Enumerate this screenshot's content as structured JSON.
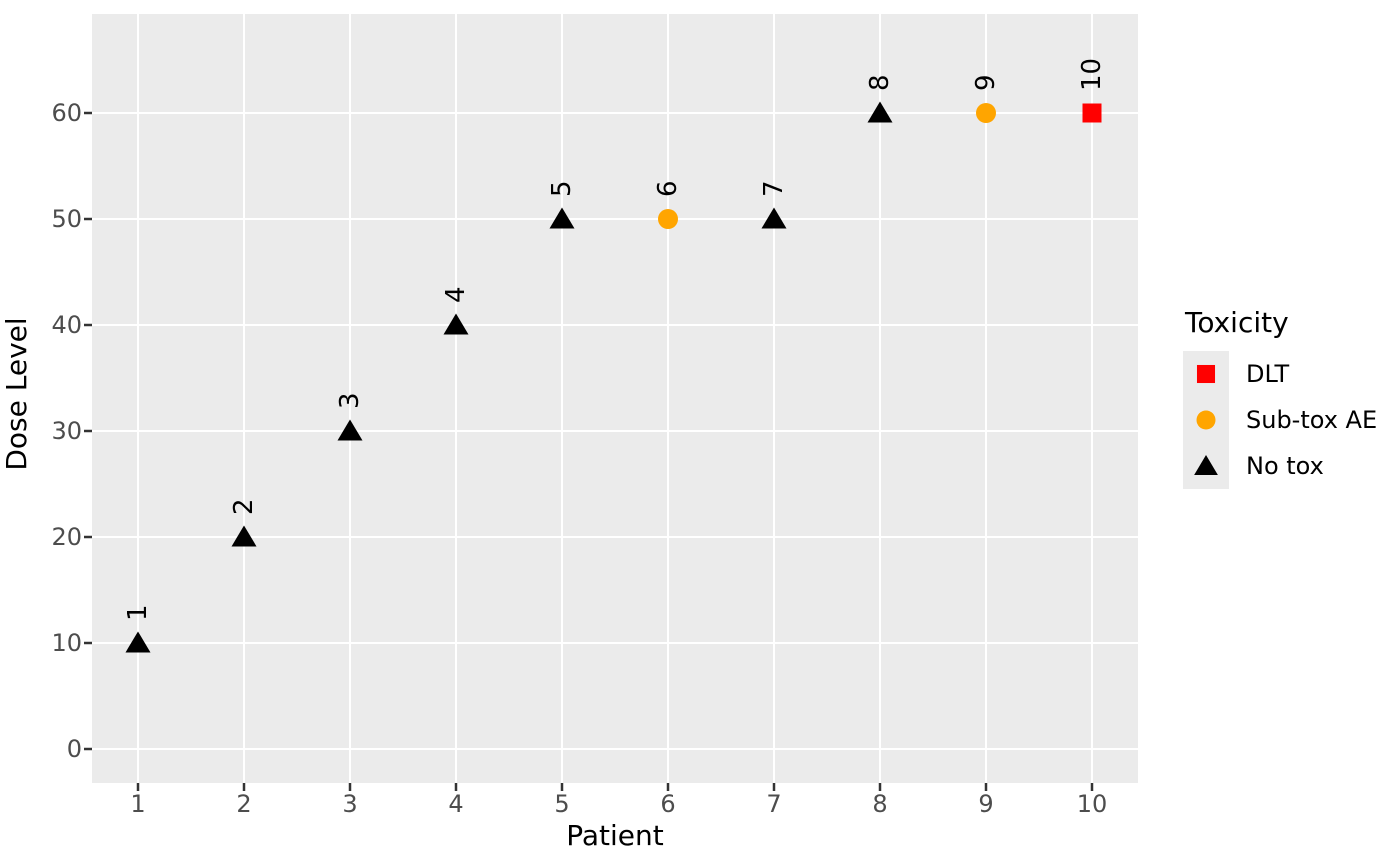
{
  "style": {
    "background": "#FFFFFF",
    "panel_background": "#EBEBEB",
    "grid_color": "#FFFFFF",
    "tick_mark_color": "#333333",
    "tick_label_color": "#4D4D4D",
    "text_color": "#000000"
  },
  "legend": {
    "title": "Toxicity",
    "entries": [
      {
        "label": "DLT",
        "shape": "square",
        "color": "#FF0000"
      },
      {
        "label": "Sub-tox AE",
        "shape": "circle",
        "color": "#FFA500"
      },
      {
        "label": "No tox",
        "shape": "triangle",
        "color": "#000000"
      }
    ]
  },
  "chart_data": {
    "type": "scatter",
    "title": "",
    "xlabel": "Patient",
    "ylabel": "Dose Level",
    "x_ticks": [
      1,
      2,
      3,
      4,
      5,
      6,
      7,
      8,
      9,
      10
    ],
    "y_ticks": [
      0,
      10,
      20,
      30,
      40,
      50,
      60
    ],
    "xlim": [
      0.57,
      10.43
    ],
    "ylim": [
      -3.2,
      69.4
    ],
    "grid": "major-only, white lines on gray panel",
    "legend_position": "right",
    "legend_title": "Toxicity",
    "point_label_rotation_deg": 90,
    "points": [
      {
        "patient": 1,
        "dose": 10,
        "toxicity": "No tox",
        "label": "1"
      },
      {
        "patient": 2,
        "dose": 20,
        "toxicity": "No tox",
        "label": "2"
      },
      {
        "patient": 3,
        "dose": 30,
        "toxicity": "No tox",
        "label": "3"
      },
      {
        "patient": 4,
        "dose": 40,
        "toxicity": "No tox",
        "label": "4"
      },
      {
        "patient": 5,
        "dose": 50,
        "toxicity": "No tox",
        "label": "5"
      },
      {
        "patient": 6,
        "dose": 50,
        "toxicity": "Sub-tox AE",
        "label": "6"
      },
      {
        "patient": 7,
        "dose": 50,
        "toxicity": "No tox",
        "label": "7"
      },
      {
        "patient": 8,
        "dose": 60,
        "toxicity": "No tox",
        "label": "8"
      },
      {
        "patient": 9,
        "dose": 60,
        "toxicity": "Sub-tox AE",
        "label": "9"
      },
      {
        "patient": 10,
        "dose": 60,
        "toxicity": "DLT",
        "label": "10"
      }
    ]
  }
}
